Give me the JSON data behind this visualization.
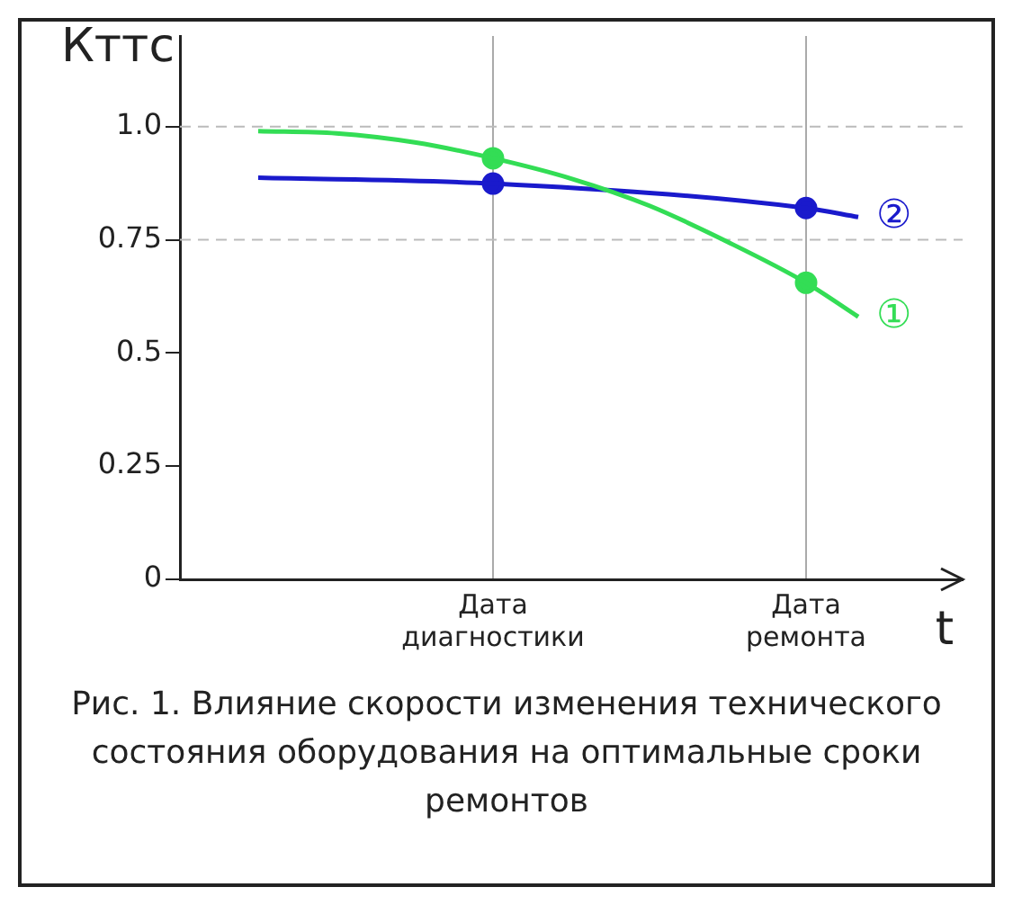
{
  "chart_data": {
    "type": "line",
    "ylabel": "Кттс",
    "xlabel": "t",
    "categories": [
      null,
      null,
      null,
      null,
      null,
      null,
      null,
      null,
      null,
      null,
      null,
      null,
      "Дата диагностики",
      null,
      null,
      null,
      null,
      null,
      null,
      null,
      null,
      null,
      null,
      null,
      "Дата ремонта",
      null,
      null,
      null,
      null,
      null,
      null
    ],
    "series": [
      {
        "name": "①",
        "color": "#33dd55",
        "values": [
          null,
          null,
          null,
          0.99,
          null,
          null,
          0.985,
          null,
          null,
          0.965,
          null,
          null,
          0.93,
          null,
          null,
          0.885,
          null,
          null,
          0.825,
          null,
          null,
          0.745,
          null,
          null,
          0.655,
          null,
          0.58,
          null,
          null,
          null,
          null
        ]
      },
      {
        "name": "②",
        "color": "#1a1acc",
        "values": [
          null,
          null,
          null,
          0.887,
          null,
          null,
          null,
          null,
          null,
          null,
          null,
          null,
          0.874,
          null,
          null,
          null,
          null,
          null,
          null,
          null,
          null,
          null,
          null,
          null,
          0.82,
          null,
          0.8,
          null,
          null,
          null,
          null
        ]
      },
      {
        "type": "scatter",
        "marker": "circle",
        "color": "#33dd55",
        "values": [
          null,
          null,
          null,
          null,
          null,
          null,
          null,
          null,
          null,
          null,
          null,
          null,
          0.93,
          null,
          null,
          null,
          null,
          null,
          null,
          null,
          null,
          null,
          null,
          null,
          0.655,
          null,
          null,
          null,
          null,
          null,
          null
        ]
      },
      {
        "type": "scatter",
        "marker": "circle",
        "color": "#1a1acc",
        "values": [
          null,
          null,
          null,
          null,
          null,
          null,
          null,
          null,
          null,
          null,
          null,
          null,
          0.874,
          null,
          null,
          null,
          null,
          null,
          null,
          null,
          null,
          null,
          null,
          null,
          0.82,
          null,
          null,
          null,
          null,
          null,
          null
        ]
      }
    ],
    "ylim": [
      0,
      1.2
    ],
    "yticks": [
      0,
      0.25,
      0.5,
      0.75,
      {
        "value": 1,
        "label": "1.0"
      }
    ],
    "grid": "x",
    "legend": false,
    "ref_lines": [
      {
        "axis": "y",
        "value": 1,
        "line_style": "dashed",
        "color": "#bbbbbb"
      },
      {
        "axis": "y",
        "value": 0.75,
        "line_style": "dashed",
        "color": "#bbbbbb"
      }
    ],
    "annotations": [
      "Рис. 1. Влияние скорости изменения технического состояния оборудования на оптимальные сроки ремонтов"
    ]
  }
}
